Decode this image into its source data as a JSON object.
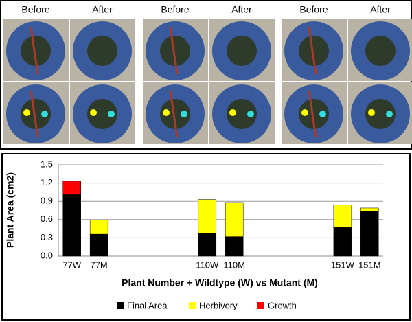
{
  "photos": {
    "labels": [
      "Before",
      "After",
      "Before",
      "After",
      "Before",
      "After"
    ]
  },
  "chart_data": {
    "type": "stacked-bar",
    "categories": [
      "77W",
      "77M",
      null,
      null,
      null,
      "110W",
      "110M",
      null,
      null,
      null,
      "151W",
      "151M"
    ],
    "series": [
      {
        "name": "Final Area",
        "color": "#000000",
        "values": [
          1.01,
          0.36,
          null,
          null,
          null,
          0.37,
          0.32,
          null,
          null,
          null,
          0.47,
          0.73
        ]
      },
      {
        "name": "Herbivory",
        "color": "#ffff00",
        "values": [
          0,
          0.23,
          null,
          null,
          null,
          0.56,
          0.56,
          null,
          null,
          null,
          0.37,
          0.06
        ]
      },
      {
        "name": "Growth",
        "color": "#ff0000",
        "values": [
          0.22,
          0,
          null,
          null,
          null,
          0,
          0,
          null,
          null,
          null,
          0,
          0
        ]
      }
    ],
    "ylabel": "Plant Area (cm2)",
    "xlabel": "Plant Number + Wildtype (W) vs Mutant (M)",
    "ylim": [
      0,
      1.5
    ],
    "yticks": [
      {
        "value": 0,
        "label": "0.0"
      },
      0.3,
      0.6,
      0.9,
      1.2,
      1.5
    ],
    "grid": true,
    "legend": "bottom"
  }
}
